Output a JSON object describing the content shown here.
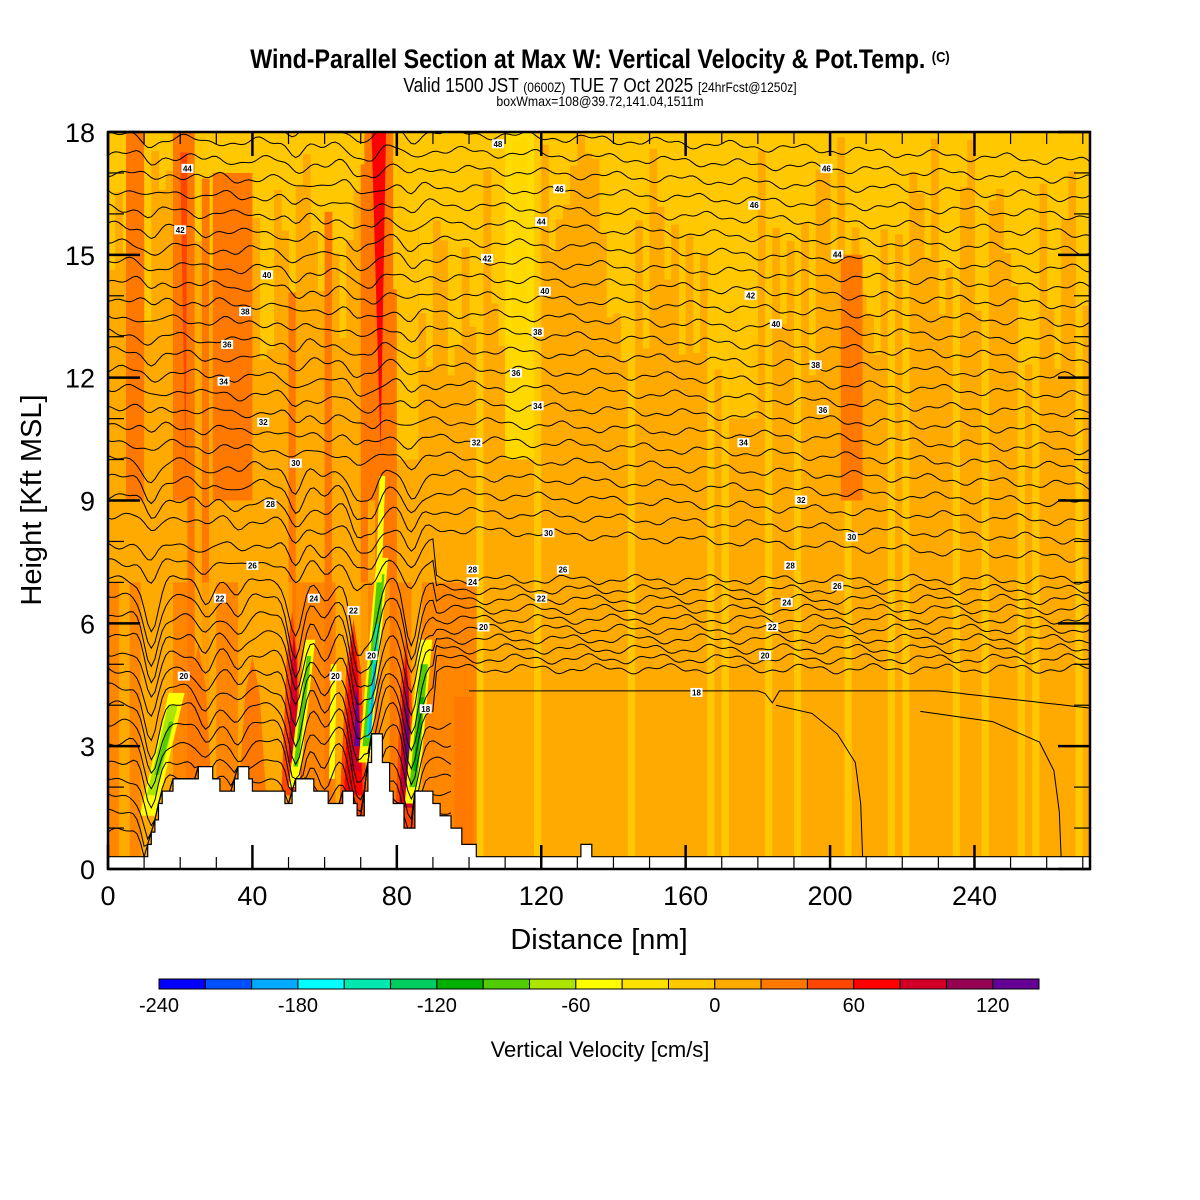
{
  "header": {
    "title": "Wind-Parallel Section at Max W: Vertical Velocity & Pot.Temp.",
    "copyright": "(C)",
    "subtitle_valid": "Valid 1500 JST",
    "subtitle_utc": "(0600Z)",
    "subtitle_date": "TUE 7 Oct 2025",
    "subtitle_fcst": "[24hrFcst@1250z]",
    "box_info": "boxWmax=108@39.72,141.04,1511m"
  },
  "chart_data": {
    "type": "heatmap",
    "title": "Wind-Parallel Section at Max W: Vertical Velocity & Pot.Temp.",
    "xlabel": "Distance [nm]",
    "ylabel": "Height [Kft MSL]",
    "xlim": [
      0,
      272
    ],
    "ylim": [
      0,
      18
    ],
    "x_ticks": [
      0,
      40,
      80,
      120,
      160,
      200,
      240
    ],
    "x_tick_labels": [
      "0",
      "40",
      "80",
      "120",
      "160",
      "200",
      "240"
    ],
    "y_ticks": [
      0,
      3,
      6,
      9,
      12,
      15,
      18
    ],
    "y_tick_labels": [
      "0",
      "3",
      "6",
      "9",
      "12",
      "15",
      "18"
    ],
    "x_minor_step": 10,
    "y_minor_step": 1,
    "colorbar": {
      "title": "Vertical Velocity [cm/s]",
      "min": -240,
      "max": 140,
      "step": 20,
      "tick_values": [
        -240,
        -180,
        -120,
        -60,
        0,
        60,
        120
      ],
      "tick_labels": [
        "-240",
        "-180",
        "-120",
        "-60",
        "0",
        "60",
        "120"
      ],
      "colors": [
        "#0000ff",
        "#0050ff",
        "#00aaff",
        "#00ffff",
        "#00e8b0",
        "#00cc60",
        "#00b000",
        "#50cc00",
        "#aae600",
        "#ffff00",
        "#ffe100",
        "#ffc800",
        "#ffaa00",
        "#ff7800",
        "#ff4600",
        "#ff0000",
        "#d20028",
        "#960050",
        "#640096"
      ]
    },
    "updraft_columns": [
      {
        "x": 20,
        "ytop": 18,
        "w": 60,
        "band": "orange"
      },
      {
        "x": 30,
        "ytop": 16,
        "w": 50,
        "band": "orange"
      },
      {
        "x": 75,
        "ytop": 18,
        "w": 70,
        "band": "red"
      },
      {
        "x": 52,
        "ytop": 7,
        "w": 90,
        "band": "crimson"
      },
      {
        "x": 68,
        "ytop": 6,
        "w": 110,
        "band": "purple"
      },
      {
        "x": 82,
        "ytop": 5.5,
        "w": 120,
        "band": "purple"
      },
      {
        "x": 206,
        "ytop": 15,
        "w": 40,
        "band": "orange"
      }
    ],
    "downdraft_columns": [
      {
        "x": 12,
        "ytop": 4,
        "w": -80
      },
      {
        "x": 56,
        "ytop": 5.5,
        "w": -100
      },
      {
        "x": 73,
        "ytop": 7,
        "w": -200
      },
      {
        "x": 87,
        "ytop": 5,
        "w": -120
      }
    ],
    "terrain_kft": [
      [
        0,
        0.3
      ],
      [
        10,
        0.3
      ],
      [
        11,
        0.6
      ],
      [
        12,
        0.9
      ],
      [
        13,
        1.2
      ],
      [
        14,
        1.6
      ],
      [
        15,
        1.9
      ],
      [
        18,
        2.2
      ],
      [
        22,
        2.2
      ],
      [
        25,
        2.5
      ],
      [
        28,
        2.5
      ],
      [
        29,
        2.2
      ],
      [
        31,
        1.9
      ],
      [
        34,
        1.9
      ],
      [
        35,
        2.2
      ],
      [
        36,
        2.5
      ],
      [
        38,
        2.5
      ],
      [
        39,
        2.2
      ],
      [
        40,
        1.9
      ],
      [
        48,
        1.9
      ],
      [
        49,
        1.6
      ],
      [
        50,
        1.6
      ],
      [
        51,
        1.9
      ],
      [
        52,
        2.2
      ],
      [
        56,
        2.2
      ],
      [
        57,
        1.9
      ],
      [
        60,
        1.9
      ],
      [
        61,
        1.6
      ],
      [
        64,
        1.6
      ],
      [
        65,
        1.9
      ],
      [
        67,
        1.9
      ],
      [
        68,
        1.6
      ],
      [
        69,
        1.3
      ],
      [
        70,
        1.3
      ],
      [
        71,
        1.9
      ],
      [
        72,
        2.6
      ],
      [
        73,
        3.3
      ],
      [
        75,
        3.3
      ],
      [
        76,
        2.6
      ],
      [
        78,
        1.9
      ],
      [
        79,
        1.6
      ],
      [
        81,
        1.6
      ],
      [
        82,
        1.0
      ],
      [
        84,
        1.0
      ],
      [
        85,
        1.9
      ],
      [
        89,
        1.9
      ],
      [
        90,
        1.6
      ],
      [
        92,
        1.3
      ],
      [
        95,
        1.0
      ],
      [
        98,
        0.6
      ],
      [
        102,
        0.3
      ],
      [
        130,
        0.3
      ],
      [
        131,
        0.6
      ],
      [
        133,
        0.6
      ],
      [
        134,
        0.3
      ],
      [
        272,
        0.3
      ]
    ],
    "theta_contours": {
      "label_positions_note": "contour labels of potential temperature (C)",
      "labels": [
        {
          "text": "44",
          "x": 22,
          "y": 17.1
        },
        {
          "text": "42",
          "x": 20,
          "y": 15.6
        },
        {
          "text": "40",
          "x": 44,
          "y": 14.5
        },
        {
          "text": "38",
          "x": 38,
          "y": 13.6
        },
        {
          "text": "36",
          "x": 33,
          "y": 12.8
        },
        {
          "text": "34",
          "x": 32,
          "y": 11.9
        },
        {
          "text": "32",
          "x": 43,
          "y": 10.9
        },
        {
          "text": "30",
          "x": 52,
          "y": 9.9
        },
        {
          "text": "28",
          "x": 45,
          "y": 8.9
        },
        {
          "text": "26",
          "x": 40,
          "y": 7.4
        },
        {
          "text": "24",
          "x": 57,
          "y": 6.6
        },
        {
          "text": "22",
          "x": 31,
          "y": 6.6
        },
        {
          "text": "22",
          "x": 68,
          "y": 6.3
        },
        {
          "text": "20",
          "x": 21,
          "y": 4.7
        },
        {
          "text": "20",
          "x": 63,
          "y": 4.7
        },
        {
          "text": "20",
          "x": 73,
          "y": 5.2
        },
        {
          "text": "18",
          "x": 88,
          "y": 3.9
        },
        {
          "text": "48",
          "x": 108,
          "y": 17.7
        },
        {
          "text": "46",
          "x": 125,
          "y": 16.6
        },
        {
          "text": "44",
          "x": 120,
          "y": 15.8
        },
        {
          "text": "42",
          "x": 105,
          "y": 14.9
        },
        {
          "text": "40",
          "x": 121,
          "y": 14.1
        },
        {
          "text": "38",
          "x": 119,
          "y": 13.1
        },
        {
          "text": "36",
          "x": 113,
          "y": 12.1
        },
        {
          "text": "34",
          "x": 119,
          "y": 11.3
        },
        {
          "text": "32",
          "x": 102,
          "y": 10.4
        },
        {
          "text": "30",
          "x": 122,
          "y": 8.2
        },
        {
          "text": "28",
          "x": 101,
          "y": 7.3
        },
        {
          "text": "26",
          "x": 126,
          "y": 7.3
        },
        {
          "text": "24",
          "x": 101,
          "y": 7.0
        },
        {
          "text": "22",
          "x": 120,
          "y": 6.6
        },
        {
          "text": "20",
          "x": 104,
          "y": 5.9
        },
        {
          "text": "18",
          "x": 163,
          "y": 4.3
        },
        {
          "text": "46",
          "x": 199,
          "y": 17.1
        },
        {
          "text": "46",
          "x": 179,
          "y": 16.2
        },
        {
          "text": "44",
          "x": 202,
          "y": 15.0
        },
        {
          "text": "42",
          "x": 178,
          "y": 14.0
        },
        {
          "text": "40",
          "x": 185,
          "y": 13.3
        },
        {
          "text": "38",
          "x": 196,
          "y": 12.3
        },
        {
          "text": "36",
          "x": 198,
          "y": 11.2
        },
        {
          "text": "34",
          "x": 176,
          "y": 10.4
        },
        {
          "text": "32",
          "x": 192,
          "y": 9.0
        },
        {
          "text": "30",
          "x": 206,
          "y": 8.1
        },
        {
          "text": "28",
          "x": 189,
          "y": 7.4
        },
        {
          "text": "26",
          "x": 202,
          "y": 6.9
        },
        {
          "text": "24",
          "x": 188,
          "y": 6.5
        },
        {
          "text": "22",
          "x": 184,
          "y": 5.9
        },
        {
          "text": "20",
          "x": 182,
          "y": 5.2
        }
      ]
    }
  }
}
